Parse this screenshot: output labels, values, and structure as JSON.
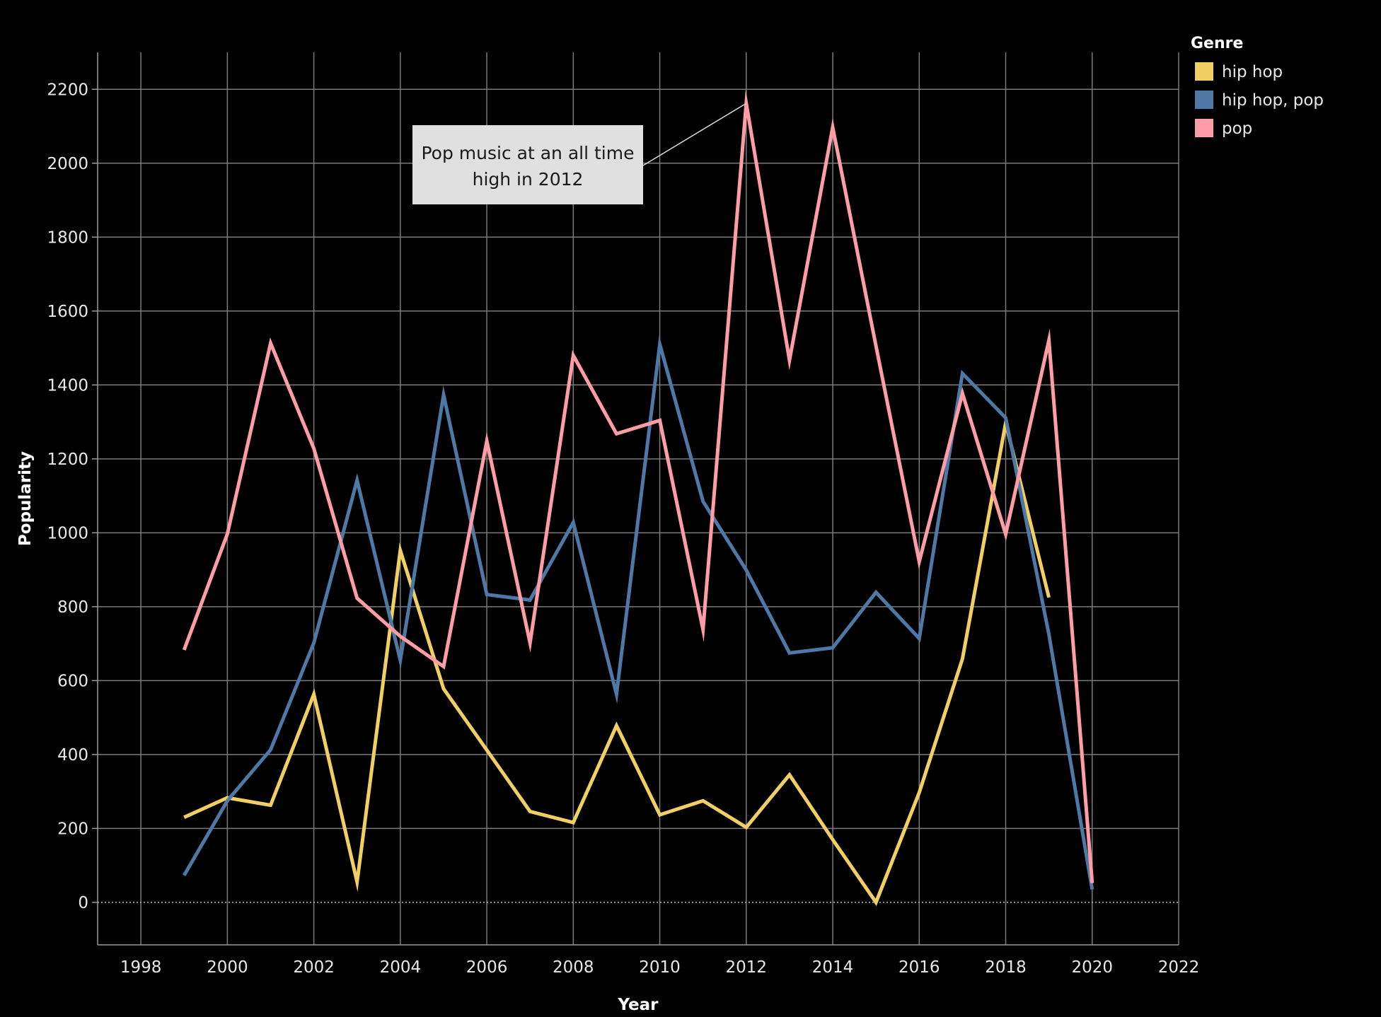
{
  "chart_data": {
    "type": "line",
    "xlabel": "Year",
    "ylabel": "Popularity",
    "xlim": [
      1997,
      2022
    ],
    "ylim": [
      -115,
      2300
    ],
    "x_ticks": [
      1998,
      2000,
      2002,
      2004,
      2006,
      2008,
      2010,
      2012,
      2014,
      2016,
      2018,
      2020,
      2022
    ],
    "y_ticks": [
      0,
      200,
      400,
      600,
      800,
      1000,
      1200,
      1400,
      1600,
      1800,
      2000,
      2200
    ],
    "grid": true,
    "legend": {
      "title": "Genre",
      "position": "top-right"
    },
    "series": [
      {
        "name": "hip hop",
        "color": "#f2cf62",
        "x": [
          1999,
          2000,
          2001,
          2002,
          2003,
          2004,
          2005,
          2006,
          2007,
          2008,
          2009,
          2010,
          2011,
          2012,
          2013,
          2014,
          2015,
          2016,
          2017,
          2018,
          2019
        ],
        "values": [
          230,
          283,
          263,
          563,
          55,
          952,
          578,
          412,
          246,
          216,
          478,
          237,
          275,
          203,
          345,
          170,
          0,
          297,
          659,
          1297,
          825
        ]
      },
      {
        "name": "hip hop, pop",
        "color": "#4e79a7",
        "x": [
          1999,
          2000,
          2001,
          2002,
          2003,
          2004,
          2005,
          2006,
          2007,
          2008,
          2009,
          2010,
          2011,
          2012,
          2013,
          2014,
          2015,
          2016,
          2017,
          2018,
          2019,
          2020
        ],
        "values": [
          73,
          275,
          413,
          702,
          1142,
          655,
          1373,
          833,
          818,
          1028,
          563,
          1510,
          1085,
          899,
          675,
          689,
          839,
          714,
          1431,
          1311,
          725,
          35
        ]
      },
      {
        "name": "pop",
        "color": "#ff9da7",
        "x": [
          1999,
          2000,
          2001,
          2002,
          2003,
          2004,
          2005,
          2006,
          2007,
          2008,
          2009,
          2010,
          2011,
          2012,
          2013,
          2014,
          2015,
          2016,
          2017,
          2018,
          2019,
          2020
        ],
        "values": [
          683,
          997,
          1513,
          1228,
          823,
          720,
          638,
          1248,
          702,
          1480,
          1268,
          1304,
          738,
          2162,
          1467,
          2097,
          1505,
          922,
          1377,
          996,
          1521,
          52
        ]
      }
    ],
    "annotations": [
      {
        "text_lines": [
          "Pop music at an all time",
          "high in 2012"
        ],
        "target": {
          "series": "pop",
          "x": 2012,
          "y": 2162
        }
      }
    ]
  }
}
